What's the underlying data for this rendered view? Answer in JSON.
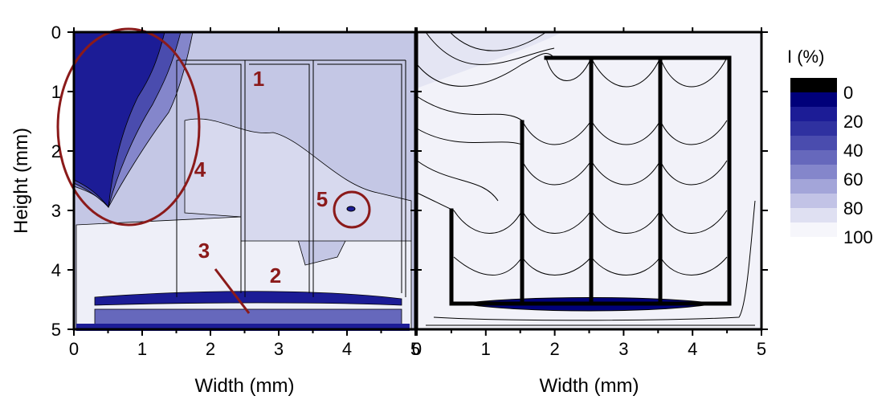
{
  "chart_data": [
    {
      "type": "contour",
      "xlabel": "Width (mm)",
      "ylabel": "Height (mm)",
      "xlim": [
        0,
        5
      ],
      "ylim": [
        0,
        5
      ],
      "xticks": [
        0,
        1,
        2,
        3,
        4,
        5
      ],
      "yticks": [
        0,
        1,
        2,
        3,
        4,
        5
      ],
      "annotations": [
        "1",
        "2",
        "3",
        "4",
        "5"
      ]
    },
    {
      "type": "contour",
      "xlabel": "Width (mm)",
      "xlim": [
        0,
        5
      ],
      "ylim": [
        0,
        5
      ],
      "xticks": [
        0,
        1,
        2,
        3,
        4,
        5
      ],
      "colorbar": {
        "title": "I (%)",
        "lim": [
          -10,
          100
        ],
        "ticks": [
          0,
          20,
          40,
          60,
          80,
          100
        ],
        "colors": [
          "#000000",
          "#00007a",
          "#1c1c96",
          "#2f31a0",
          "#4a4cae",
          "#6668bc",
          "#8486cb",
          "#a3a5d9",
          "#c2c3e6",
          "#dfe0f2",
          "#f6f6fb"
        ]
      }
    }
  ]
}
